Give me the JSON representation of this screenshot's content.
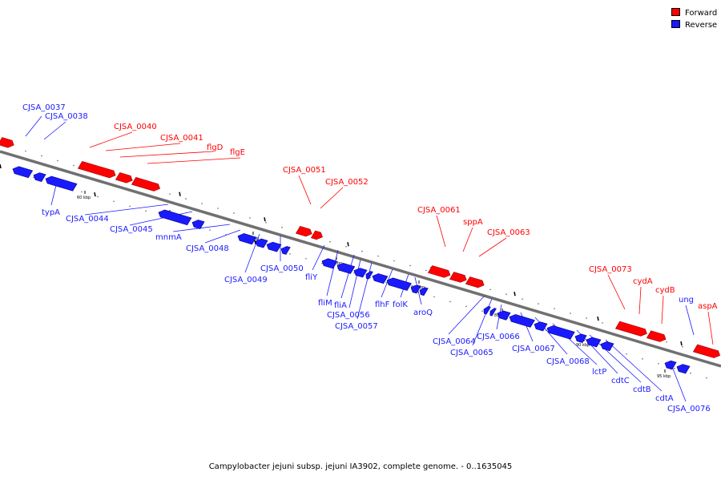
{
  "legend": {
    "forward": {
      "label": "Forward",
      "color": "#ff0000"
    },
    "reverse": {
      "label": "Reverse",
      "color": "#1a1aff"
    }
  },
  "caption": "Campylobacter jejuni subsp. jejuni IA3902, complete genome. - 0..1635045",
  "genome_map": {
    "axis_tick_labels": [
      "60 kbp",
      "65 kbp",
      "70 kbp",
      "75 kbp",
      "80 kbp",
      "85 kbp",
      "90 kbp",
      "95 kbp"
    ],
    "genes": [
      {
        "name": "CJSA_0037",
        "strand": "reverse"
      },
      {
        "name": "CJSA_0038",
        "strand": "reverse"
      },
      {
        "name": "typA",
        "strand": "reverse"
      },
      {
        "name": "CJSA_0040",
        "strand": "forward"
      },
      {
        "name": "CJSA_0041",
        "strand": "forward"
      },
      {
        "name": "flgD",
        "strand": "forward"
      },
      {
        "name": "flgE",
        "strand": "forward"
      },
      {
        "name": "CJSA_0044",
        "strand": "reverse"
      },
      {
        "name": "CJSA_0045",
        "strand": "reverse"
      },
      {
        "name": "mnmA",
        "strand": "reverse"
      },
      {
        "name": "CJSA_0048",
        "strand": "reverse"
      },
      {
        "name": "CJSA_0049",
        "strand": "reverse"
      },
      {
        "name": "CJSA_0050",
        "strand": "reverse"
      },
      {
        "name": "CJSA_0051",
        "strand": "forward"
      },
      {
        "name": "CJSA_0052",
        "strand": "forward"
      },
      {
        "name": "fliY",
        "strand": "reverse"
      },
      {
        "name": "fliM",
        "strand": "reverse"
      },
      {
        "name": "fliA",
        "strand": "reverse"
      },
      {
        "name": "CJSA_0056",
        "strand": "reverse"
      },
      {
        "name": "CJSA_0057",
        "strand": "reverse"
      },
      {
        "name": "flhF",
        "strand": "reverse"
      },
      {
        "name": "folK",
        "strand": "reverse"
      },
      {
        "name": "aroQ",
        "strand": "reverse"
      },
      {
        "name": "CJSA_0061",
        "strand": "forward"
      },
      {
        "name": "sppA",
        "strand": "forward"
      },
      {
        "name": "CJSA_0063",
        "strand": "forward"
      },
      {
        "name": "CJSA_0064",
        "strand": "reverse"
      },
      {
        "name": "CJSA_0065",
        "strand": "reverse"
      },
      {
        "name": "CJSA_0066",
        "strand": "reverse"
      },
      {
        "name": "CJSA_0067",
        "strand": "reverse"
      },
      {
        "name": "CJSA_0068",
        "strand": "reverse"
      },
      {
        "name": "lctP",
        "strand": "reverse"
      },
      {
        "name": "cdtC",
        "strand": "reverse"
      },
      {
        "name": "cdtB",
        "strand": "reverse"
      },
      {
        "name": "cdtA",
        "strand": "reverse"
      },
      {
        "name": "CJSA_0073",
        "strand": "forward"
      },
      {
        "name": "cydA",
        "strand": "forward"
      },
      {
        "name": "cydB",
        "strand": "forward"
      },
      {
        "name": "CJSA_0076",
        "strand": "reverse"
      },
      {
        "name": "ung",
        "strand": "reverse"
      },
      {
        "name": "aspA",
        "strand": "forward"
      }
    ]
  }
}
